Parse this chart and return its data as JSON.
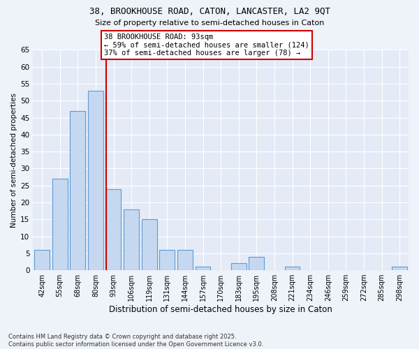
{
  "title": "38, BROOKHOUSE ROAD, CATON, LANCASTER, LA2 9QT",
  "subtitle": "Size of property relative to semi-detached houses in Caton",
  "xlabel": "Distribution of semi-detached houses by size in Caton",
  "ylabel": "Number of semi-detached properties",
  "footnote": "Contains HM Land Registry data © Crown copyright and database right 2025.\nContains public sector information licensed under the Open Government Licence v3.0.",
  "categories": [
    "42sqm",
    "55sqm",
    "68sqm",
    "80sqm",
    "93sqm",
    "106sqm",
    "119sqm",
    "131sqm",
    "144sqm",
    "157sqm",
    "170sqm",
    "183sqm",
    "195sqm",
    "208sqm",
    "221sqm",
    "234sqm",
    "246sqm",
    "259sqm",
    "272sqm",
    "285sqm",
    "298sqm"
  ],
  "values": [
    6,
    27,
    47,
    53,
    24,
    18,
    15,
    6,
    6,
    1,
    0,
    2,
    4,
    0,
    1,
    0,
    0,
    0,
    0,
    0,
    1
  ],
  "bar_color": "#c5d8f0",
  "bar_edge_color": "#5b9bd5",
  "highlight_index": 4,
  "highlight_line_color": "#cc0000",
  "annotation_title": "38 BROOKHOUSE ROAD: 93sqm",
  "annotation_line1": "← 59% of semi-detached houses are smaller (124)",
  "annotation_line2": "37% of semi-detached houses are larger (78) →",
  "annotation_box_color": "#cc0000",
  "ylim": [
    0,
    65
  ],
  "yticks": [
    0,
    5,
    10,
    15,
    20,
    25,
    30,
    35,
    40,
    45,
    50,
    55,
    60,
    65
  ],
  "background_color": "#eef2f9",
  "plot_bg_color": "#e4eaf6"
}
